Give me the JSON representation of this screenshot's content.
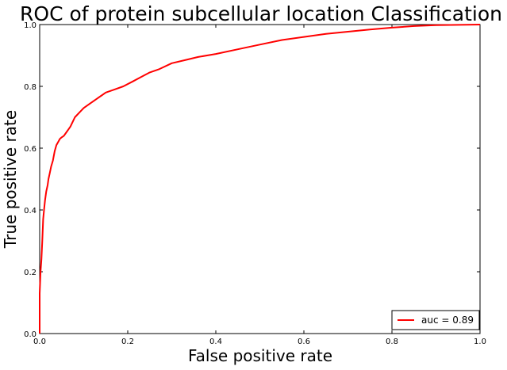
{
  "chart_data": {
    "type": "line",
    "title": "ROC of protein subcellular location Classification",
    "xlabel": "False positive rate",
    "ylabel": "True positive rate",
    "xlim": [
      0,
      1
    ],
    "ylim": [
      0,
      1
    ],
    "xticks": [
      "0.0",
      "0.2",
      "0.4",
      "0.6",
      "0.8",
      "1.0"
    ],
    "yticks": [
      "0.0",
      "0.2",
      "0.4",
      "0.6",
      "0.8",
      "1.0"
    ],
    "grid": false,
    "legend_position": "lower-right",
    "series": [
      {
        "name": "auc = 0.89",
        "color": "#ff0000",
        "x": [
          0.0,
          0.0,
          0.002,
          0.004,
          0.006,
          0.008,
          0.01,
          0.012,
          0.015,
          0.018,
          0.02,
          0.023,
          0.026,
          0.03,
          0.034,
          0.038,
          0.042,
          0.046,
          0.05,
          0.055,
          0.06,
          0.065,
          0.07,
          0.075,
          0.08,
          0.09,
          0.1,
          0.115,
          0.13,
          0.15,
          0.17,
          0.19,
          0.21,
          0.23,
          0.25,
          0.27,
          0.3,
          0.33,
          0.36,
          0.4,
          0.45,
          0.5,
          0.55,
          0.6,
          0.65,
          0.7,
          0.75,
          0.8,
          0.85,
          0.9,
          0.95,
          1.0
        ],
        "y": [
          0.0,
          0.13,
          0.2,
          0.24,
          0.3,
          0.37,
          0.4,
          0.43,
          0.46,
          0.48,
          0.5,
          0.52,
          0.54,
          0.56,
          0.59,
          0.61,
          0.62,
          0.63,
          0.635,
          0.64,
          0.65,
          0.66,
          0.67,
          0.685,
          0.7,
          0.715,
          0.73,
          0.745,
          0.76,
          0.78,
          0.79,
          0.8,
          0.815,
          0.83,
          0.845,
          0.855,
          0.875,
          0.885,
          0.895,
          0.905,
          0.92,
          0.935,
          0.95,
          0.96,
          0.97,
          0.977,
          0.984,
          0.99,
          0.995,
          0.998,
          0.999,
          1.0
        ]
      }
    ]
  }
}
